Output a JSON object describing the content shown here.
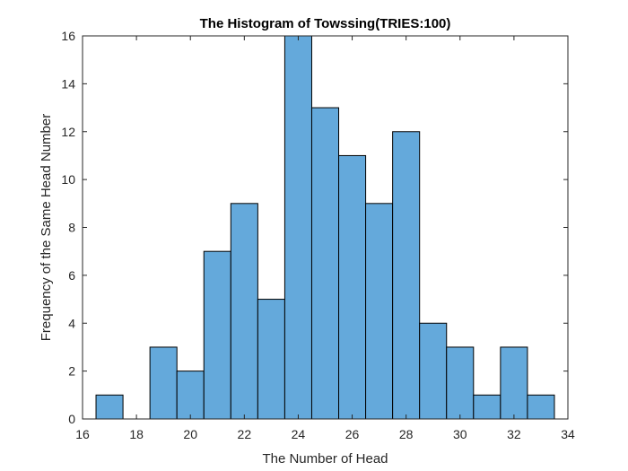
{
  "chart_data": {
    "type": "bar",
    "title": "The Histogram of Towssing(TRIES:100)",
    "xlabel": "The Number of Head",
    "ylabel": "Frequency of the Same Head Number",
    "xlim": [
      16,
      34
    ],
    "ylim": [
      0,
      16
    ],
    "xticks": [
      16,
      18,
      20,
      22,
      24,
      26,
      28,
      30,
      32,
      34
    ],
    "yticks": [
      0,
      2,
      4,
      6,
      8,
      10,
      12,
      14,
      16
    ],
    "bin_edges": [
      16.5,
      17.5,
      18.5,
      19.5,
      20.5,
      21.5,
      22.5,
      23.5,
      24.5,
      25.5,
      26.5,
      27.5,
      28.5,
      29.5,
      30.5,
      31.5,
      32.5,
      33.5
    ],
    "values": [
      1,
      0,
      3,
      2,
      7,
      9,
      5,
      16,
      13,
      11,
      9,
      12,
      4,
      3,
      1,
      3,
      1
    ],
    "bar_color": "#64A9DB",
    "edge_color": "#000000",
    "grid": false
  }
}
